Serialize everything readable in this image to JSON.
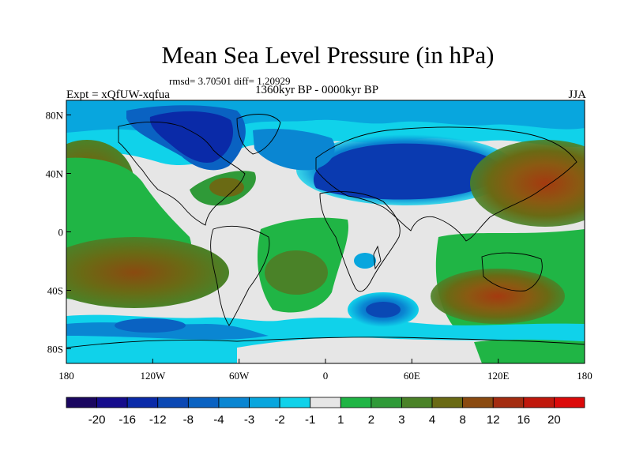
{
  "header": {
    "title": "Mean Sea Level Pressure (in hPa)",
    "stats": "rmsd= 3.70501 diff= 1.20929",
    "period": "1360kyr BP - 0000kyr BP",
    "experiment": "Expt = xQfUW-xqfua",
    "season": "JJA"
  },
  "colors": {
    "land_line": "#000000",
    "frame": "#000000"
  },
  "chart_data": {
    "type": "heatmap",
    "title": "Mean Sea Level Pressure (in hPa)",
    "xlabel": "",
    "ylabel": "",
    "xlim": [
      -180,
      180
    ],
    "ylim": [
      -90,
      90
    ],
    "x_ticks": [
      {
        "value": -180,
        "label": "180"
      },
      {
        "value": -120,
        "label": "120W"
      },
      {
        "value": -60,
        "label": "60W"
      },
      {
        "value": 0,
        "label": "0"
      },
      {
        "value": 60,
        "label": "60E"
      },
      {
        "value": 120,
        "label": "120E"
      },
      {
        "value": 180,
        "label": "180"
      }
    ],
    "y_ticks": [
      {
        "value": 80,
        "label": "80N"
      },
      {
        "value": 40,
        "label": "40N"
      },
      {
        "value": 0,
        "label": "0"
      },
      {
        "value": -40,
        "label": "40S"
      },
      {
        "value": -80,
        "label": "80S"
      }
    ],
    "colorbar": {
      "levels": [
        "-20",
        "-16",
        "-12",
        "-8",
        "-4",
        "-3",
        "-2",
        "-1",
        "1",
        "2",
        "3",
        "4",
        "8",
        "12",
        "16",
        "20"
      ],
      "colors": [
        "#1a0660",
        "#150c8c",
        "#0a2aa8",
        "#0b48b4",
        "#0a62c2",
        "#0a86d2",
        "#08a6de",
        "#10d2ea",
        "#e6e6e6",
        "#20b545",
        "#2f9a38",
        "#4a8228",
        "#6a6a14",
        "#8a4a10",
        "#a42c10",
        "#c0180c",
        "#dc0a0a"
      ]
    },
    "regions": [
      {
        "name": "north-pacific-high-west",
        "lon": 160,
        "lat": 35,
        "rlon": 40,
        "rlat": 14,
        "value": 12
      },
      {
        "name": "north-pacific-high-east",
        "lon": -165,
        "lat": 30,
        "rlon": 25,
        "rlat": 14,
        "value": 8
      },
      {
        "name": "south-pacific-high",
        "lon": -130,
        "lat": -30,
        "rlon": 45,
        "rlat": 14,
        "value": 8
      },
      {
        "name": "south-indian-high",
        "lon": 105,
        "lat": -40,
        "rlon": 35,
        "rlat": 10,
        "value": 12
      },
      {
        "name": "south-atlantic-high",
        "lon": -25,
        "lat": -35,
        "rlon": 20,
        "rlat": 12,
        "value": 4
      },
      {
        "name": "asian-low",
        "lon": 65,
        "lat": 40,
        "rlon": 55,
        "rlat": 16,
        "value": -8
      },
      {
        "name": "greenland-low",
        "lon": -75,
        "lat": 72,
        "rlon": 25,
        "rlat": 12,
        "value": -12
      },
      {
        "name": "southern-ocean-low-atlantic",
        "lon": 30,
        "lat": -55,
        "rlon": 18,
        "rlat": 8,
        "value": -8
      },
      {
        "name": "southern-ocean-low-pacific",
        "lon": -150,
        "lat": -68,
        "rlon": 30,
        "rlat": 8,
        "value": -4
      },
      {
        "name": "north-atlantic-high",
        "lon": -75,
        "lat": 35,
        "rlon": 15,
        "rlat": 8,
        "value": 4
      }
    ]
  }
}
